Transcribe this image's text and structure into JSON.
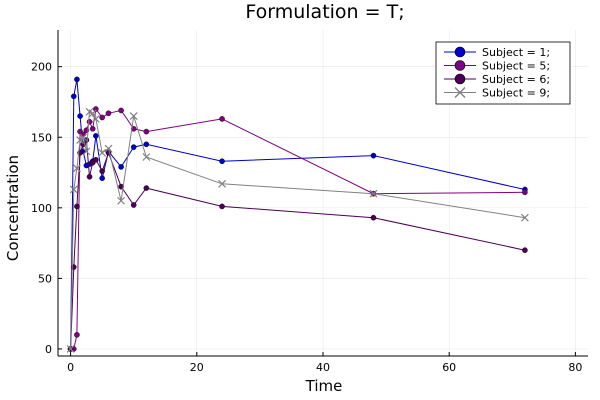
{
  "chart_data": {
    "type": "line",
    "title": "Formulation = T;",
    "xlabel": "Time",
    "ylabel": "Concentration",
    "xlim": [
      -2,
      82
    ],
    "ylim": [
      -5,
      226
    ],
    "xticks": [
      0,
      20,
      40,
      60,
      80
    ],
    "yticks": [
      0,
      50,
      100,
      150,
      200
    ],
    "x_tick_labels": [
      "0",
      "20",
      "40",
      "60",
      "80"
    ],
    "y_tick_labels": [
      "0",
      "50",
      "100",
      "150",
      "200"
    ],
    "grid": true,
    "legend_position": "top-right",
    "series": [
      {
        "name": "Subject = 1;",
        "color": "#0000cc",
        "marker": "circle",
        "x": [
          0,
          0.5,
          1,
          1.5,
          2,
          2.5,
          3,
          3.5,
          4,
          5,
          6,
          8,
          10,
          12,
          24,
          48,
          72
        ],
        "y": [
          0,
          179,
          191,
          165,
          140,
          130,
          131,
          133,
          151,
          121,
          140,
          129,
          143,
          145,
          133,
          137,
          113
        ]
      },
      {
        "name": "Subject = 5;",
        "color": "#800080",
        "marker": "circle",
        "x": [
          0,
          0.5,
          1,
          1.5,
          2,
          2.5,
          3,
          3.5,
          4,
          5,
          6,
          8,
          10,
          12,
          24,
          48,
          72
        ],
        "y": [
          0,
          0,
          10,
          154,
          152,
          155,
          161,
          156,
          170,
          164,
          167,
          169,
          156,
          154,
          163,
          110,
          111
        ]
      },
      {
        "name": "Subject = 6;",
        "color": "#4b0055",
        "marker": "circle",
        "x": [
          0,
          0.5,
          1,
          1.5,
          2,
          2.5,
          3,
          3.5,
          4,
          5,
          6,
          8,
          10,
          12,
          24,
          48,
          72
        ],
        "y": [
          0,
          58,
          101,
          139,
          145,
          148,
          122,
          132,
          134,
          126,
          139,
          115,
          102,
          114,
          101,
          93,
          70
        ]
      },
      {
        "name": "Subject = 9;",
        "color": "#808080",
        "marker": "x",
        "x": [
          0,
          0.5,
          1,
          1.5,
          2,
          2.5,
          3,
          3.5,
          4,
          5,
          6,
          8,
          10,
          12,
          24,
          48,
          72
        ],
        "y": [
          0,
          113,
          128,
          148,
          150,
          140,
          168,
          167,
          163,
          139,
          142,
          105,
          165,
          136,
          117,
          110,
          93
        ]
      }
    ]
  }
}
